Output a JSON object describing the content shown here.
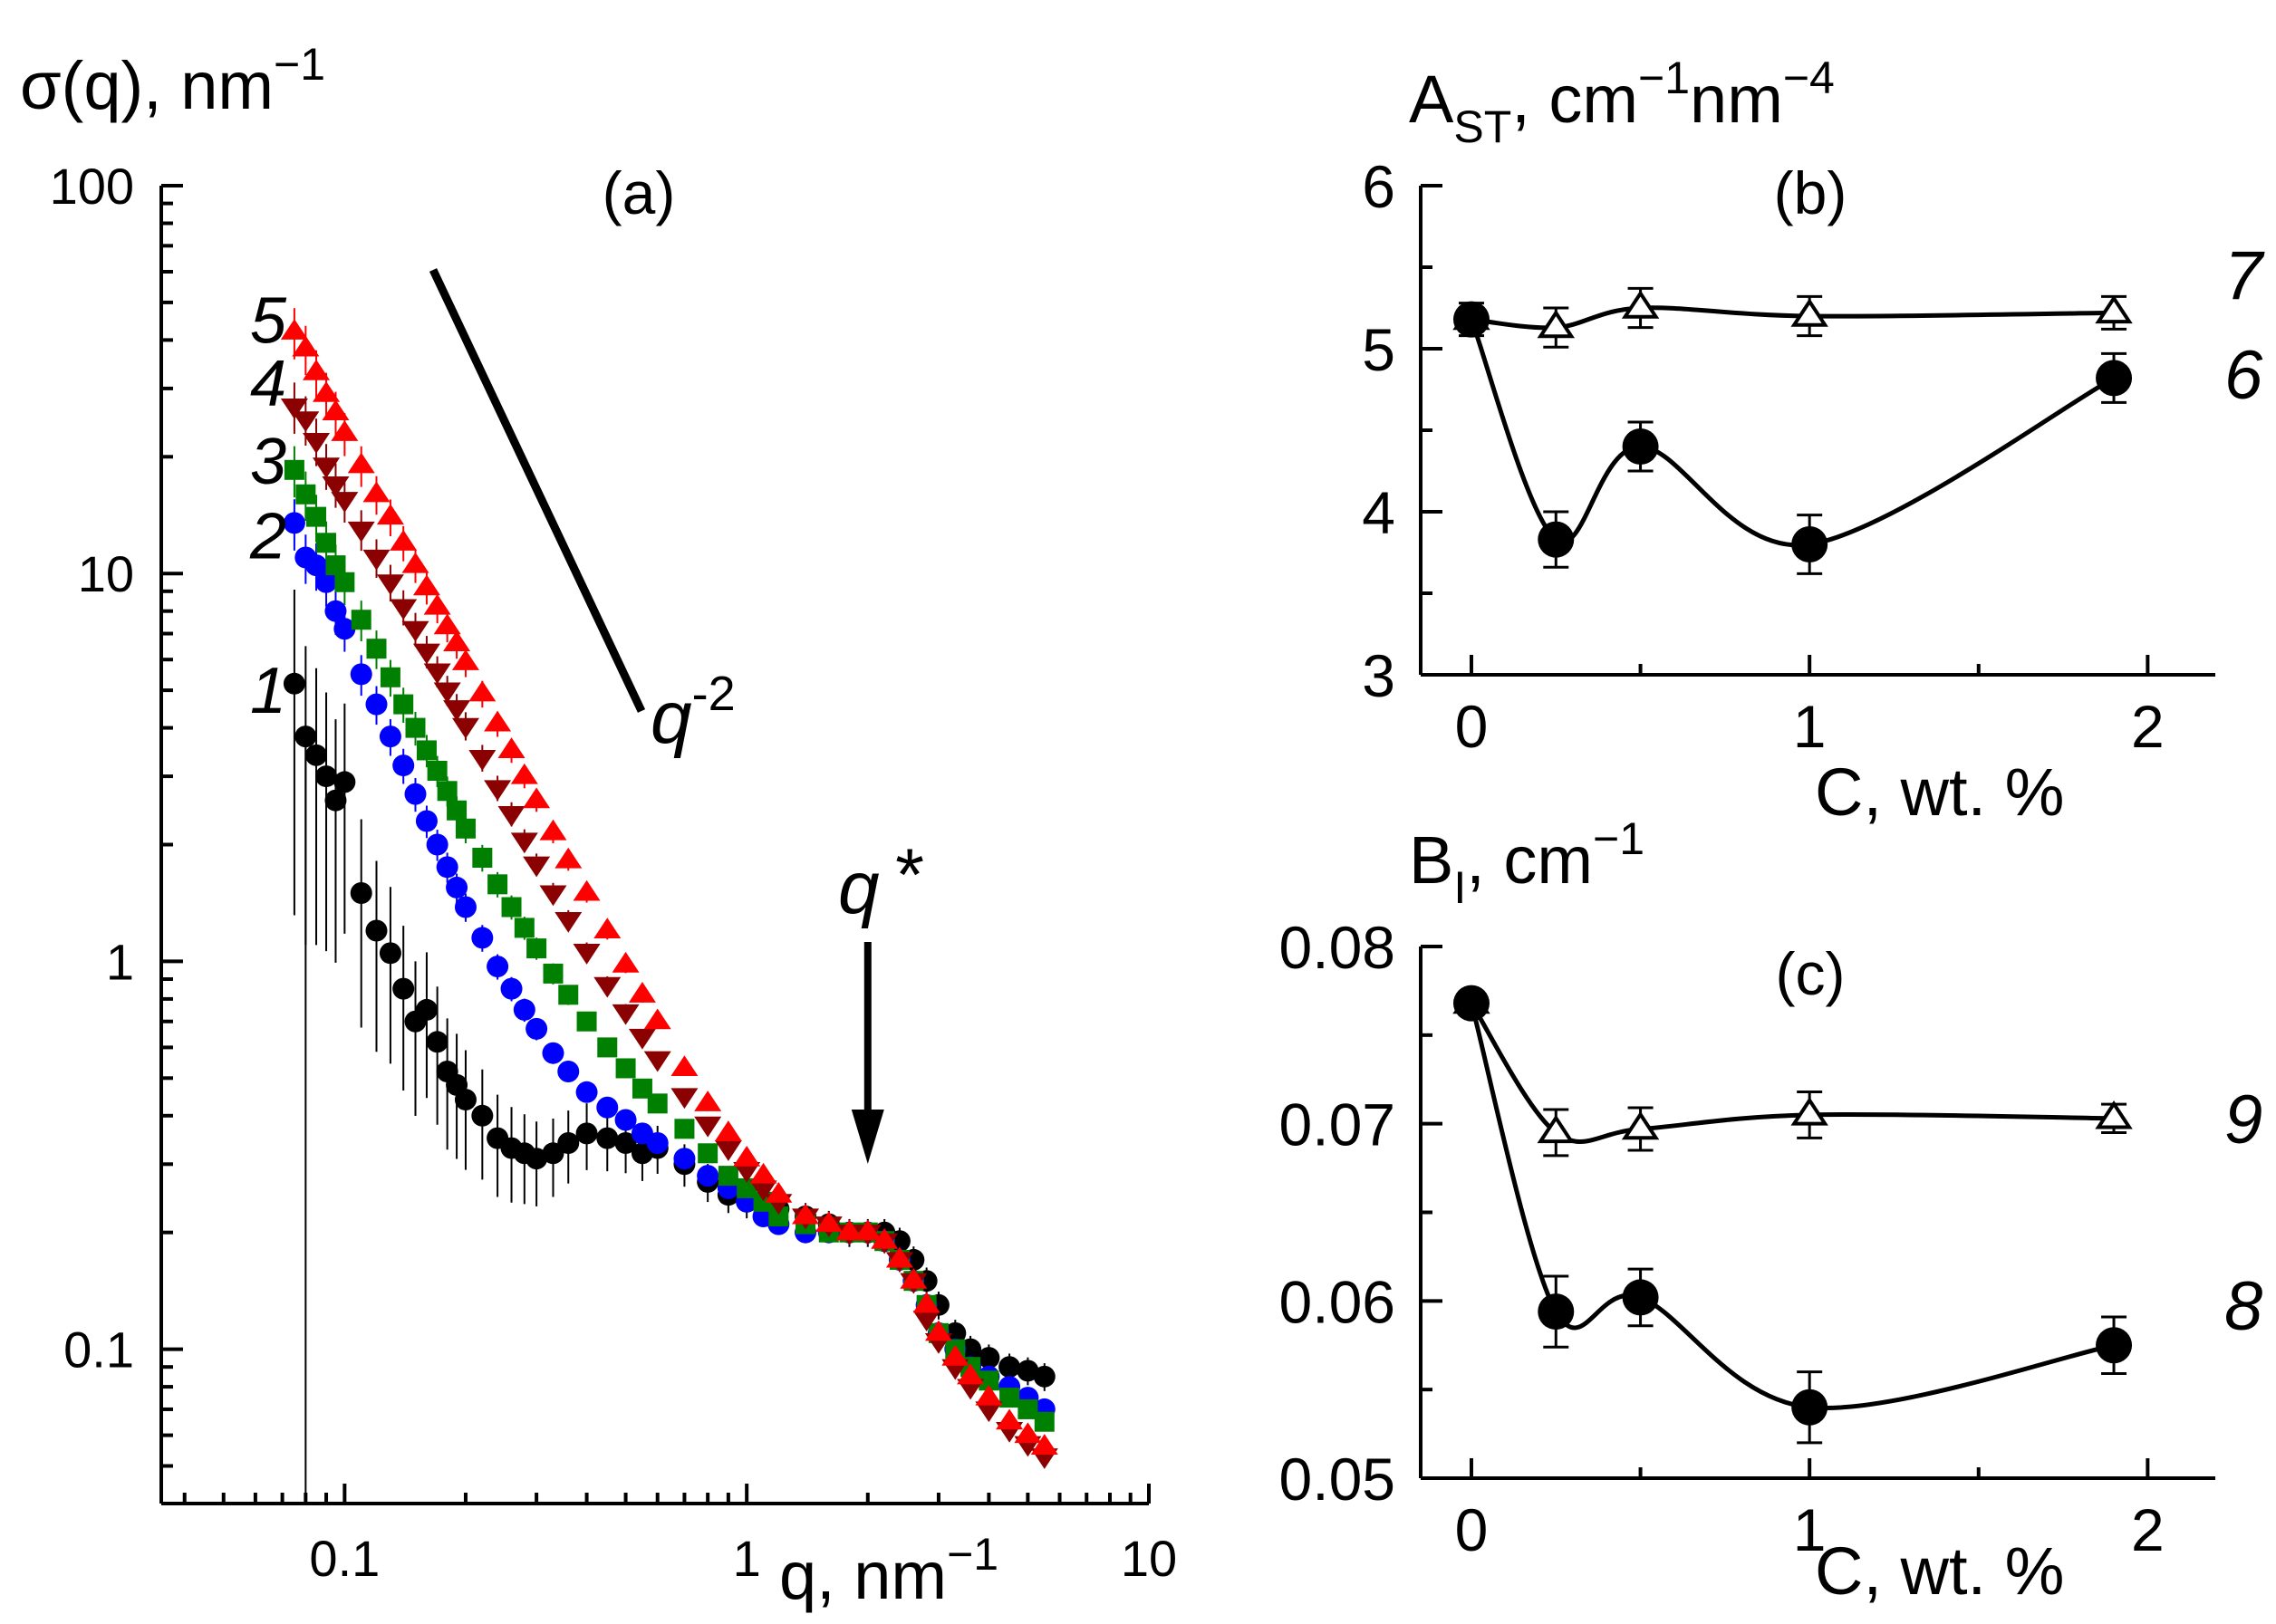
{
  "chart_data": [
    {
      "panel": "(a)",
      "type": "scatter",
      "xscale": "log",
      "yscale": "log",
      "ylabel": "σ(q), nm",
      "ylabel_sup": "−1",
      "xlabel": "q, nm",
      "xlabel_sup": "−1",
      "xlim": [
        0.035,
        10
      ],
      "ylim": [
        0.04,
        100
      ],
      "xticks": [
        "0.1",
        "1",
        "10"
      ],
      "yticks": [
        "0.1",
        "1",
        "10",
        "100"
      ],
      "slope_label_base": "q",
      "slope_label_exp": "-2",
      "marker_label": "q",
      "marker_label_star": "*",
      "marker_x": 2.0,
      "series": [
        {
          "name": "1",
          "marker": "circle",
          "color": "#000000",
          "x": [
            0.075,
            0.08,
            0.085,
            0.09,
            0.095,
            0.1,
            0.11,
            0.12,
            0.13,
            0.14,
            0.15,
            0.16,
            0.17,
            0.18,
            0.19,
            0.2,
            0.22,
            0.24,
            0.26,
            0.28,
            0.3,
            0.33,
            0.36,
            0.4,
            0.45,
            0.5,
            0.55,
            0.6,
            0.7,
            0.8,
            0.9,
            1.0,
            1.1,
            1.2,
            1.4,
            1.6,
            1.8,
            2.0,
            2.2,
            2.4,
            2.6,
            2.8,
            3.0,
            3.3,
            3.6,
            4.0,
            4.5,
            5.0,
            5.5
          ],
          "y": [
            5.2,
            3.8,
            3.4,
            3.0,
            2.6,
            2.9,
            1.5,
            1.2,
            1.05,
            0.85,
            0.7,
            0.75,
            0.62,
            0.52,
            0.48,
            0.44,
            0.4,
            0.35,
            0.33,
            0.32,
            0.31,
            0.32,
            0.34,
            0.36,
            0.35,
            0.34,
            0.32,
            0.33,
            0.3,
            0.27,
            0.25,
            0.24,
            0.24,
            0.23,
            0.22,
            0.21,
            0.2,
            0.2,
            0.2,
            0.19,
            0.17,
            0.15,
            0.13,
            0.11,
            0.1,
            0.095,
            0.09,
            0.088,
            0.085
          ]
        },
        {
          "name": "2",
          "marker": "circle",
          "color": "#0000ff",
          "x": [
            0.075,
            0.08,
            0.085,
            0.09,
            0.095,
            0.1,
            0.11,
            0.12,
            0.13,
            0.14,
            0.15,
            0.16,
            0.17,
            0.18,
            0.19,
            0.2,
            0.22,
            0.24,
            0.26,
            0.28,
            0.3,
            0.33,
            0.36,
            0.4,
            0.45,
            0.5,
            0.55,
            0.6,
            0.7,
            0.8,
            0.9,
            1.0,
            1.1,
            1.2,
            1.4,
            1.6,
            1.8,
            2.0,
            2.2,
            2.4,
            2.6,
            2.8,
            3.0,
            3.3,
            3.6,
            4.0,
            4.5,
            5.0,
            5.5
          ],
          "y": [
            13.5,
            11.0,
            10.5,
            9.5,
            8.0,
            7.2,
            5.5,
            4.6,
            3.8,
            3.2,
            2.7,
            2.3,
            2.0,
            1.75,
            1.55,
            1.38,
            1.15,
            0.97,
            0.85,
            0.75,
            0.67,
            0.58,
            0.52,
            0.46,
            0.42,
            0.39,
            0.36,
            0.34,
            0.31,
            0.28,
            0.26,
            0.24,
            0.22,
            0.21,
            0.2,
            0.2,
            0.2,
            0.2,
            0.19,
            0.17,
            0.15,
            0.13,
            0.11,
            0.1,
            0.09,
            0.085,
            0.08,
            0.075,
            0.07
          ]
        },
        {
          "name": "3",
          "marker": "square",
          "color": "#008000",
          "x": [
            0.075,
            0.08,
            0.085,
            0.09,
            0.095,
            0.1,
            0.11,
            0.12,
            0.13,
            0.14,
            0.15,
            0.16,
            0.17,
            0.18,
            0.19,
            0.2,
            0.22,
            0.24,
            0.26,
            0.28,
            0.3,
            0.33,
            0.36,
            0.4,
            0.45,
            0.5,
            0.55,
            0.6,
            0.7,
            0.8,
            0.9,
            1.0,
            1.1,
            1.2,
            1.4,
            1.6,
            1.8,
            2.0,
            2.2,
            2.4,
            2.6,
            2.8,
            3.0,
            3.3,
            3.6,
            4.0,
            4.5,
            5.0,
            5.5
          ],
          "y": [
            18.5,
            16.0,
            14.0,
            12.0,
            10.5,
            9.5,
            7.6,
            6.4,
            5.4,
            4.6,
            4.0,
            3.5,
            3.1,
            2.75,
            2.45,
            2.2,
            1.85,
            1.58,
            1.38,
            1.22,
            1.08,
            0.93,
            0.82,
            0.7,
            0.6,
            0.53,
            0.47,
            0.43,
            0.37,
            0.32,
            0.28,
            0.26,
            0.24,
            0.22,
            0.21,
            0.2,
            0.2,
            0.2,
            0.19,
            0.17,
            0.15,
            0.13,
            0.11,
            0.1,
            0.09,
            0.083,
            0.075,
            0.07,
            0.065
          ]
        },
        {
          "name": "4",
          "marker": "triangle-down",
          "color": "#8b0000",
          "x": [
            0.075,
            0.08,
            0.085,
            0.09,
            0.095,
            0.1,
            0.11,
            0.12,
            0.13,
            0.14,
            0.15,
            0.16,
            0.17,
            0.18,
            0.19,
            0.2,
            0.22,
            0.24,
            0.26,
            0.28,
            0.3,
            0.33,
            0.36,
            0.4,
            0.45,
            0.5,
            0.55,
            0.6,
            0.7,
            0.8,
            0.9,
            1.0,
            1.1,
            1.2,
            1.4,
            1.6,
            1.8,
            2.0,
            2.2,
            2.4,
            2.6,
            2.8,
            3.0,
            3.3,
            3.6,
            4.0,
            4.5,
            5.0,
            5.5
          ],
          "y": [
            27.0,
            25.0,
            22.0,
            19.0,
            17.0,
            15.5,
            13.0,
            11.0,
            9.5,
            8.2,
            7.2,
            6.3,
            5.6,
            5.0,
            4.5,
            4.05,
            3.35,
            2.8,
            2.4,
            2.05,
            1.78,
            1.5,
            1.28,
            1.06,
            0.87,
            0.74,
            0.64,
            0.56,
            0.45,
            0.38,
            0.33,
            0.29,
            0.26,
            0.24,
            0.22,
            0.21,
            0.2,
            0.2,
            0.19,
            0.17,
            0.15,
            0.12,
            0.105,
            0.09,
            0.08,
            0.07,
            0.062,
            0.057,
            0.053
          ]
        },
        {
          "name": "5",
          "marker": "triangle-up",
          "color": "#ff0000",
          "x": [
            0.075,
            0.08,
            0.085,
            0.09,
            0.095,
            0.1,
            0.11,
            0.12,
            0.13,
            0.14,
            0.15,
            0.16,
            0.17,
            0.18,
            0.19,
            0.2,
            0.22,
            0.24,
            0.26,
            0.28,
            0.3,
            0.33,
            0.36,
            0.4,
            0.45,
            0.5,
            0.55,
            0.6,
            0.7,
            0.8,
            0.9,
            1.0,
            1.1,
            1.2,
            1.4,
            1.6,
            1.8,
            2.0,
            2.2,
            2.4,
            2.6,
            2.8,
            3.0,
            3.3,
            3.6,
            4.0,
            4.5,
            5.0,
            5.5
          ],
          "y": [
            42.0,
            38.0,
            33.0,
            29.0,
            26.0,
            23.0,
            19.0,
            16.0,
            14.0,
            12.0,
            10.5,
            9.2,
            8.2,
            7.3,
            6.6,
            5.9,
            4.9,
            4.1,
            3.5,
            3.0,
            2.6,
            2.15,
            1.82,
            1.5,
            1.2,
            0.98,
            0.82,
            0.7,
            0.53,
            0.43,
            0.36,
            0.31,
            0.28,
            0.25,
            0.22,
            0.21,
            0.2,
            0.2,
            0.19,
            0.17,
            0.15,
            0.13,
            0.11,
            0.095,
            0.085,
            0.075,
            0.065,
            0.06,
            0.056
          ]
        }
      ]
    },
    {
      "panel": "(b)",
      "type": "line",
      "ylabel": "A",
      "ylabel_sub": "ST",
      "ylabel_rest": ", cm",
      "ylabel_sup1": "−1",
      "ylabel_mid": "nm",
      "ylabel_sup2": "−4",
      "xlabel": "C, wt. %",
      "xlim": [
        -0.15,
        2.2
      ],
      "ylim": [
        3,
        6
      ],
      "xticks": [
        "0",
        "1",
        "2"
      ],
      "yticks": [
        "3",
        "4",
        "5",
        "6"
      ],
      "series": [
        {
          "name": "7",
          "marker": "triangle-open",
          "x": [
            0,
            0.25,
            0.5,
            1.0,
            1.9
          ],
          "y": [
            5.18,
            5.13,
            5.25,
            5.2,
            5.22
          ],
          "err": [
            0.1,
            0.12,
            0.12,
            0.12,
            0.1
          ]
        },
        {
          "name": "6",
          "marker": "circle-filled",
          "x": [
            0,
            0.25,
            0.5,
            1.0,
            1.9
          ],
          "y": [
            5.18,
            3.83,
            4.4,
            3.8,
            4.82
          ],
          "err": [
            0.05,
            0.17,
            0.15,
            0.18,
            0.15
          ]
        }
      ]
    },
    {
      "panel": "(c)",
      "type": "line",
      "ylabel": "B",
      "ylabel_sub": "I",
      "ylabel_rest": ", cm",
      "ylabel_sup1": "−1",
      "xlabel": "C, wt. %",
      "xlim": [
        -0.15,
        2.2
      ],
      "ylim": [
        0.05,
        0.08
      ],
      "xticks": [
        "0",
        "1",
        "2"
      ],
      "yticks": [
        "0.05",
        "0.06",
        "0.07",
        "0.08"
      ],
      "series": [
        {
          "name": "9",
          "marker": "triangle-open",
          "x": [
            0,
            0.25,
            0.5,
            1.0,
            1.9
          ],
          "y": [
            0.0768,
            0.0695,
            0.0697,
            0.0705,
            0.0703
          ],
          "err": [
            0.0006,
            0.0013,
            0.0012,
            0.0013,
            0.0008
          ]
        },
        {
          "name": "8",
          "marker": "circle-filled",
          "x": [
            0,
            0.25,
            0.5,
            1.0,
            1.9
          ],
          "y": [
            0.0768,
            0.0594,
            0.0602,
            0.054,
            0.0575
          ],
          "err": [
            0.0006,
            0.002,
            0.0016,
            0.002,
            0.0016
          ]
        }
      ]
    }
  ]
}
